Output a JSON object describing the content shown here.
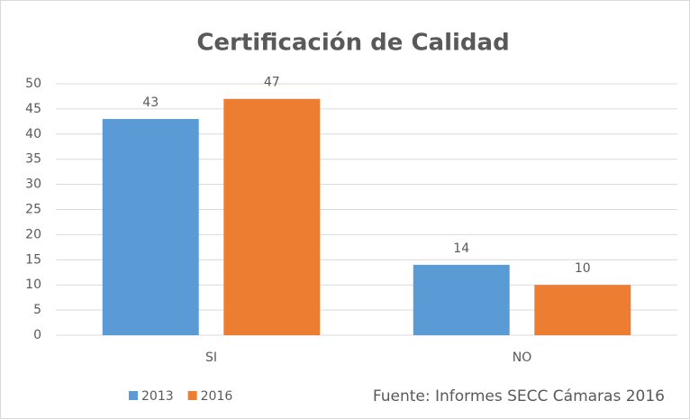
{
  "chart_data": {
    "type": "bar",
    "title": "Certificación de Calidad",
    "categories": [
      "SI",
      "NO"
    ],
    "series": [
      {
        "name": "2013",
        "color": "#5b9bd5",
        "values": [
          43,
          14
        ]
      },
      {
        "name": "2016",
        "color": "#ed7d31",
        "values": [
          47,
          10
        ]
      }
    ],
    "ylim": [
      0,
      50
    ],
    "yticks": [
      0,
      5,
      10,
      15,
      20,
      25,
      30,
      35,
      40,
      45,
      50
    ],
    "grid": true,
    "legend": "bottom-left",
    "annotation": "Fuente: Informes SECC Cámaras 2016"
  }
}
